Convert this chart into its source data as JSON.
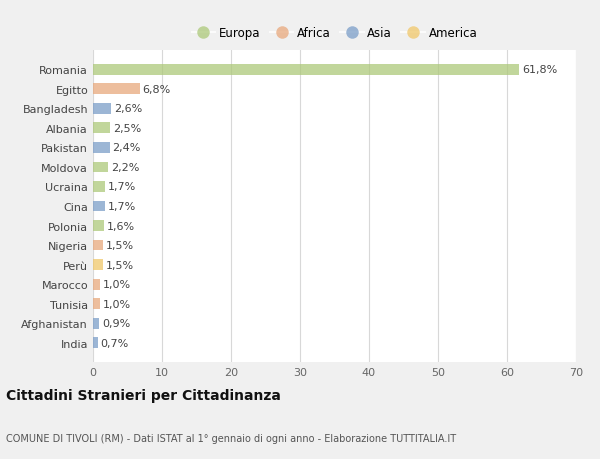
{
  "countries": [
    "Romania",
    "Egitto",
    "Bangladesh",
    "Albania",
    "Pakistan",
    "Moldova",
    "Ucraina",
    "Cina",
    "Polonia",
    "Nigeria",
    "Perù",
    "Marocco",
    "Tunisia",
    "Afghanistan",
    "India"
  ],
  "values": [
    61.8,
    6.8,
    2.6,
    2.5,
    2.4,
    2.2,
    1.7,
    1.7,
    1.6,
    1.5,
    1.5,
    1.0,
    1.0,
    0.9,
    0.7
  ],
  "labels": [
    "61,8%",
    "6,8%",
    "2,6%",
    "2,5%",
    "2,4%",
    "2,2%",
    "1,7%",
    "1,7%",
    "1,6%",
    "1,5%",
    "1,5%",
    "1,0%",
    "1,0%",
    "0,9%",
    "0,7%"
  ],
  "continents": [
    "Europa",
    "Africa",
    "Asia",
    "Europa",
    "Asia",
    "Europa",
    "Europa",
    "Asia",
    "Europa",
    "Africa",
    "America",
    "Africa",
    "Africa",
    "Asia",
    "Asia"
  ],
  "continent_colors": {
    "Europa": "#adc97a",
    "Africa": "#e8a87c",
    "Asia": "#7b9ec8",
    "America": "#f0c76a"
  },
  "legend_order": [
    "Europa",
    "Africa",
    "Asia",
    "America"
  ],
  "xlim": [
    0,
    70
  ],
  "xticks": [
    0,
    10,
    20,
    30,
    40,
    50,
    60,
    70
  ],
  "title": "Cittadini Stranieri per Cittadinanza",
  "subtitle": "COMUNE DI TIVOLI (RM) - Dati ISTAT al 1° gennaio di ogni anno - Elaborazione TUTTITALIA.IT",
  "background_color": "#f0f0f0",
  "bar_background": "#ffffff",
  "grid_color": "#d8d8d8",
  "label_fontsize": 8,
  "tick_fontsize": 8,
  "bar_alpha": 0.75
}
